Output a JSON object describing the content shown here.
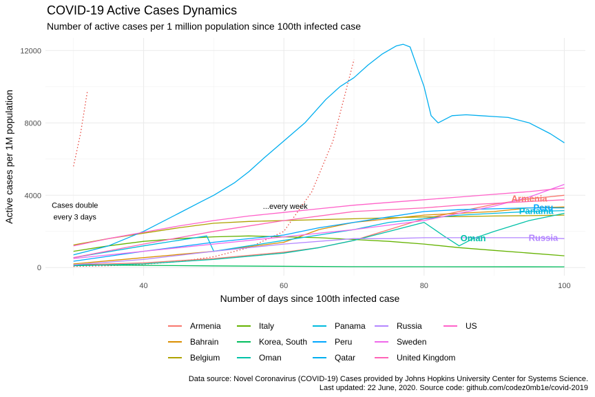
{
  "title": "COVID-19 Active Cases Dynamics",
  "subtitle": "Number of active cases per 1 million population since 100th infected case",
  "caption": [
    "Data source: Novel Coronavirus (COVID-19) Cases provided by Johns Hopkins University Center for Systems Science.",
    "Last updated: 22 June, 2020. Source code: github.com/codez0mb1e/covid-2019"
  ],
  "chart_data": {
    "type": "line",
    "xlabel": "Number of days since 100th infected case",
    "ylabel": "Active cases per 1M population",
    "xlim": [
      26,
      103
    ],
    "ylim": [
      -450,
      12700
    ],
    "xticks": [
      40,
      60,
      80,
      100
    ],
    "yticks": [
      0,
      4000,
      8000,
      12000
    ],
    "grid": true,
    "legend_position": "bottom",
    "annotations": [
      {
        "text": [
          "Cases double",
          "every 3 days"
        ],
        "x": 30.2,
        "y": 3300
      },
      {
        "text": [
          "...every week"
        ],
        "x": 60.2,
        "y": 3250
      }
    ],
    "reference_lines": [
      {
        "name": "double-every-3-days",
        "style": "dotted",
        "color": "#E8453C",
        "x": [
          30,
          30.5,
          31,
          31.5,
          32
        ],
        "y": [
          5600,
          6500,
          7400,
          8600,
          9800
        ]
      },
      {
        "name": "double-every-week",
        "style": "dotted",
        "color": "#E8453C",
        "x": [
          30,
          35,
          40,
          45,
          50,
          55,
          60,
          64,
          67,
          70
        ],
        "y": [
          60,
          100,
          180,
          330,
          600,
          1100,
          2000,
          4200,
          7000,
          11500
        ]
      }
    ],
    "series": [
      {
        "name": "Armenia",
        "color": "#F8766D",
        "label_at_end": true,
        "label_x": 95,
        "x": [
          30,
          40,
          50,
          60,
          65,
          70,
          75,
          80,
          85,
          90,
          95,
          100
        ],
        "y": [
          150,
          260,
          500,
          850,
          1100,
          1500,
          2100,
          2700,
          3100,
          3500,
          3800,
          4000
        ]
      },
      {
        "name": "Bahrain",
        "color": "#DB8E00",
        "x": [
          30,
          40,
          50,
          60,
          65,
          70,
          75,
          80,
          85,
          90,
          95,
          100
        ],
        "y": [
          200,
          550,
          900,
          1400,
          2100,
          2500,
          2700,
          2900,
          3000,
          3100,
          3300,
          3350
        ]
      },
      {
        "name": "Belgium",
        "color": "#AEA200",
        "x": [
          30,
          35,
          40,
          45,
          50,
          55,
          60,
          65,
          70,
          75,
          80,
          85,
          90,
          95,
          100
        ],
        "y": [
          1250,
          1600,
          1900,
          2200,
          2450,
          2550,
          2600,
          2650,
          2700,
          2750,
          2800,
          2820,
          2850,
          2870,
          2900
        ]
      },
      {
        "name": "Italy",
        "color": "#64B200",
        "x": [
          30,
          35,
          40,
          45,
          50,
          55,
          60,
          65,
          70,
          75,
          80,
          85,
          90,
          95,
          100
        ],
        "y": [
          900,
          1200,
          1450,
          1600,
          1700,
          1750,
          1700,
          1650,
          1550,
          1450,
          1300,
          1100,
          950,
          800,
          650
        ]
      },
      {
        "name": "Korea, South",
        "color": "#00BD5C",
        "x": [
          30,
          50,
          70,
          100
        ],
        "y": [
          150,
          90,
          50,
          40
        ]
      },
      {
        "name": "Oman",
        "color": "#00C1A7",
        "label_at_end": true,
        "label_x": 87,
        "x": [
          30,
          40,
          50,
          60,
          65,
          70,
          75,
          80,
          83,
          85,
          87,
          90,
          95,
          100
        ],
        "y": [
          100,
          200,
          450,
          800,
          1100,
          1500,
          2000,
          2500,
          1700,
          1200,
          1600,
          2000,
          2600,
          3000
        ]
      },
      {
        "name": "Panama",
        "color": "#00BADE",
        "label_at_end": true,
        "label_x": 96,
        "x": [
          30,
          40,
          49,
          50,
          55,
          60,
          65,
          70,
          75,
          80,
          85,
          90,
          95,
          100
        ],
        "y": [
          550,
          1200,
          1750,
          900,
          1200,
          1500,
          1800,
          2100,
          2500,
          2700,
          2900,
          3000,
          3100,
          3150
        ]
      },
      {
        "name": "Peru",
        "color": "#00A6FF",
        "label_at_end": true,
        "label_x": 97,
        "x": [
          30,
          40,
          50,
          60,
          65,
          70,
          75,
          80,
          85,
          90,
          95,
          100
        ],
        "y": [
          350,
          900,
          1400,
          1800,
          2200,
          2500,
          2800,
          3100,
          3200,
          3250,
          3300,
          3300
        ]
      },
      {
        "name": "Qatar",
        "color": "#00A6FF",
        "line_color": "#00AEEF",
        "x": [
          30,
          35,
          40,
          45,
          48,
          50,
          53,
          55,
          57,
          60,
          63,
          66,
          68,
          70,
          72,
          74,
          76,
          77,
          78,
          80,
          81,
          82,
          84,
          86,
          88,
          90,
          92,
          95,
          98,
          100
        ],
        "y": [
          700,
          1200,
          2000,
          3000,
          3600,
          4000,
          4700,
          5300,
          6000,
          7000,
          8000,
          9300,
          10000,
          10500,
          11200,
          11800,
          12250,
          12350,
          12200,
          10000,
          8400,
          8000,
          8400,
          8450,
          8400,
          8350,
          8300,
          8000,
          7400,
          6900
        ]
      },
      {
        "name": "Russia",
        "color": "#B385FF",
        "label_at_end": true,
        "label_x": 97,
        "x": [
          30,
          40,
          50,
          60,
          70,
          75,
          80,
          85,
          90,
          95,
          100
        ],
        "y": [
          150,
          450,
          900,
          1300,
          1600,
          1600,
          1650,
          1650,
          1650,
          1650,
          1600
        ]
      },
      {
        "name": "Sweden",
        "color": "#EF67EB",
        "x": [
          30,
          40,
          50,
          60,
          70,
          80,
          85,
          90,
          95,
          100
        ],
        "y": [
          500,
          900,
          1300,
          1700,
          2100,
          2600,
          3000,
          3400,
          3900,
          4600
        ]
      },
      {
        "name": "United Kingdom",
        "color": "#FF63B6",
        "x": [
          30,
          40,
          50,
          60,
          70,
          80,
          85,
          90,
          95,
          100
        ],
        "y": [
          550,
          1300,
          2000,
          2600,
          3100,
          3300,
          3450,
          3550,
          3650,
          3750
        ]
      },
      {
        "name": "US",
        "color": "#FF61C9",
        "x": [
          30,
          35,
          40,
          45,
          50,
          55,
          60,
          65,
          70,
          75,
          80,
          85,
          90,
          95,
          100
        ],
        "y": [
          1200,
          1600,
          1950,
          2300,
          2600,
          2850,
          3050,
          3250,
          3450,
          3600,
          3750,
          3900,
          4050,
          4200,
          4400
        ]
      }
    ]
  }
}
